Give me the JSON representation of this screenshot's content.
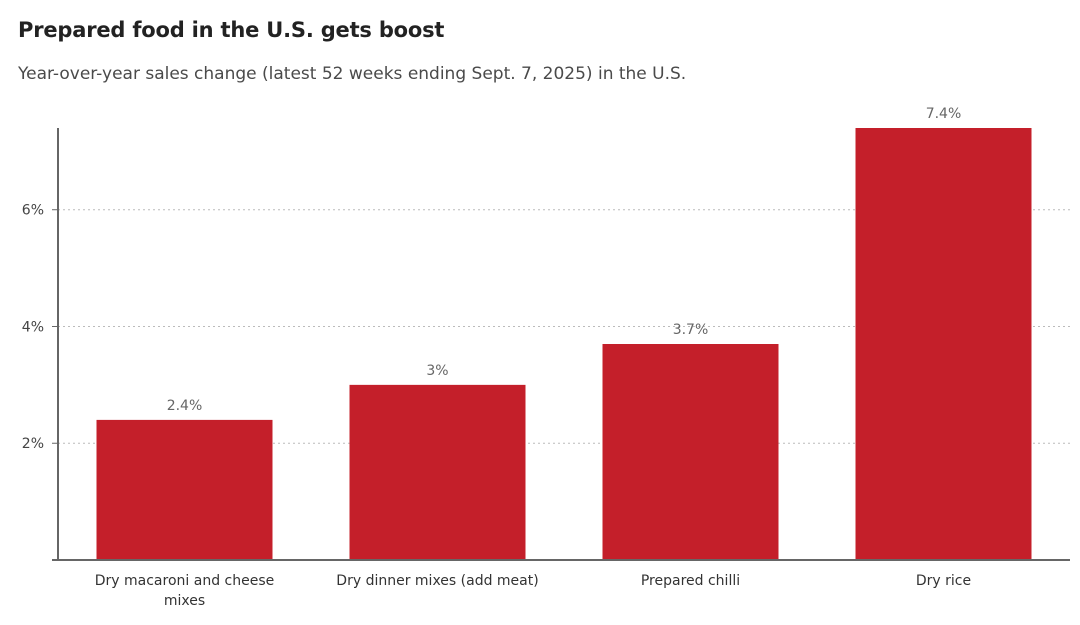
{
  "title": "Prepared food in the U.S. gets boost",
  "subtitle": "Year-over-year sales change (latest 52 weeks ending Sept. 7, 2025) in the U.S.",
  "colors": {
    "bar": "#c41f2a",
    "grid": "#bbbbbb",
    "axis": "#666666"
  },
  "chart_data": {
    "type": "bar",
    "title": "Prepared food in the U.S. gets boost",
    "subtitle": "Year-over-year sales change (latest 52 weeks ending Sept. 7, 2025) in the U.S.",
    "categories": [
      [
        "Dry macaroni and cheese",
        "mixes"
      ],
      [
        "Dry dinner mixes (add meat)"
      ],
      [
        "Prepared chilli"
      ],
      [
        "Dry rice"
      ]
    ],
    "values": [
      2.4,
      3,
      3.7,
      7.4
    ],
    "value_labels": [
      "2.4%",
      "3%",
      "3.7%",
      "7.4%"
    ],
    "yticks": [
      2,
      4,
      6
    ],
    "ytick_labels": [
      "2%",
      "4%",
      "6%"
    ],
    "ylim": [
      0,
      7.4
    ],
    "xlabel": "",
    "ylabel": "",
    "grid": true
  }
}
